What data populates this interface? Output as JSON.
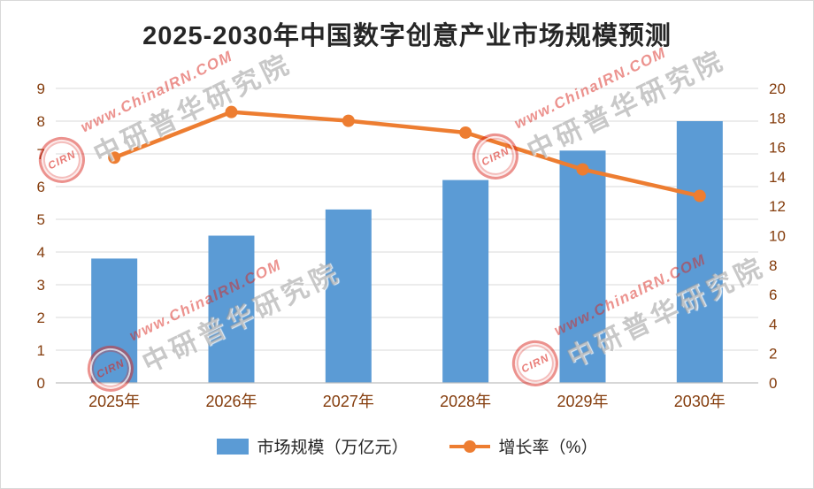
{
  "title": "2025-2030年中国数字创意产业市场规模预测",
  "chart_data": {
    "type": "bar",
    "subtype": "bar+line combo",
    "categories": [
      "2025年",
      "2026年",
      "2027年",
      "2028年",
      "2029年",
      "2030年"
    ],
    "series": [
      {
        "name": "市场规模（万亿元）",
        "type": "bar",
        "axis": "left",
        "values": [
          3.8,
          4.5,
          5.3,
          6.2,
          7.1,
          8.0
        ],
        "color": "#5B9BD5"
      },
      {
        "name": "增长率（%）",
        "type": "line",
        "axis": "right",
        "values": [
          15.3,
          18.4,
          17.8,
          17.0,
          14.5,
          12.7
        ],
        "color": "#ED7D31"
      }
    ],
    "left_axis": {
      "min": 0,
      "max": 9,
      "step": 1
    },
    "right_axis": {
      "min": 0,
      "max": 20,
      "step": 2
    },
    "grid": true,
    "legend_position": "bottom",
    "title": "2025-2030年中国数字创意产业市场规模预测"
  },
  "legend": {
    "bar_label": "市场规模（万亿元）",
    "line_label": "增长率（%）"
  },
  "watermark": {
    "logo_text": "CIRN",
    "url_text": "www.ChinaIRN.COM",
    "brand_text": "中研普华研究院"
  },
  "colors": {
    "bar": "#5B9BD5",
    "line": "#ED7D31",
    "axis_label": "#843C0C",
    "grid": "#D9D9D9",
    "watermark_red": "#DA251D",
    "watermark_gray": "#8C8C8C"
  }
}
